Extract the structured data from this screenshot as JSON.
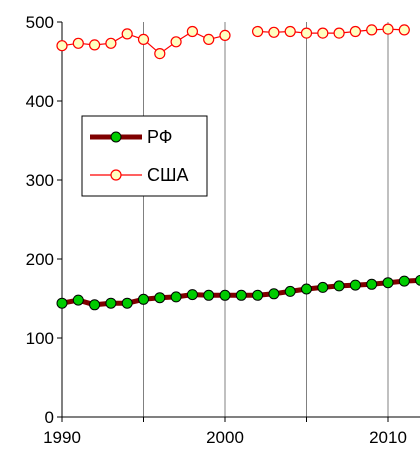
{
  "chart_data": {
    "type": "line",
    "title": "",
    "xlabel": "",
    "ylabel": "",
    "xlim": [
      1990,
      2012
    ],
    "ylim": [
      0,
      500
    ],
    "y_ticks": [
      "0",
      "100",
      "200",
      "300",
      "400",
      "500"
    ],
    "x_ticks": [
      "1990",
      "2000",
      "2010"
    ],
    "grid": "vertical",
    "legend_position": "left-middle",
    "series": [
      {
        "name": "РФ",
        "color": "#7f0000",
        "marker_fill": "#00cc00",
        "marker_stroke": "#000000",
        "x": [
          1990,
          1991,
          1992,
          1993,
          1994,
          1995,
          1996,
          1997,
          1998,
          1999,
          2000,
          2001,
          2002,
          2003,
          2004,
          2005,
          2006,
          2007,
          2008,
          2009,
          2010,
          2011,
          2012
        ],
        "values": [
          144,
          148,
          142,
          144,
          144,
          149,
          151,
          152,
          155,
          154,
          154,
          154,
          154,
          156,
          159,
          162,
          164,
          166,
          167,
          168,
          170,
          172,
          173
        ]
      },
      {
        "name": "США",
        "color": "#ff0000",
        "marker_fill": "#ffffc0",
        "marker_stroke": "#ff0000",
        "x": [
          1990,
          1991,
          1992,
          1993,
          1994,
          1995,
          1996,
          1997,
          1998,
          1999,
          2000,
          2001,
          2002,
          2003,
          2004,
          2005,
          2006,
          2007,
          2008,
          2009,
          2010,
          2011
        ],
        "values": [
          470,
          473,
          471,
          473,
          485,
          478,
          460,
          475,
          488,
          478,
          483,
          null,
          488,
          487,
          488,
          486,
          486,
          486,
          488,
          490,
          491,
          490
        ]
      }
    ]
  }
}
